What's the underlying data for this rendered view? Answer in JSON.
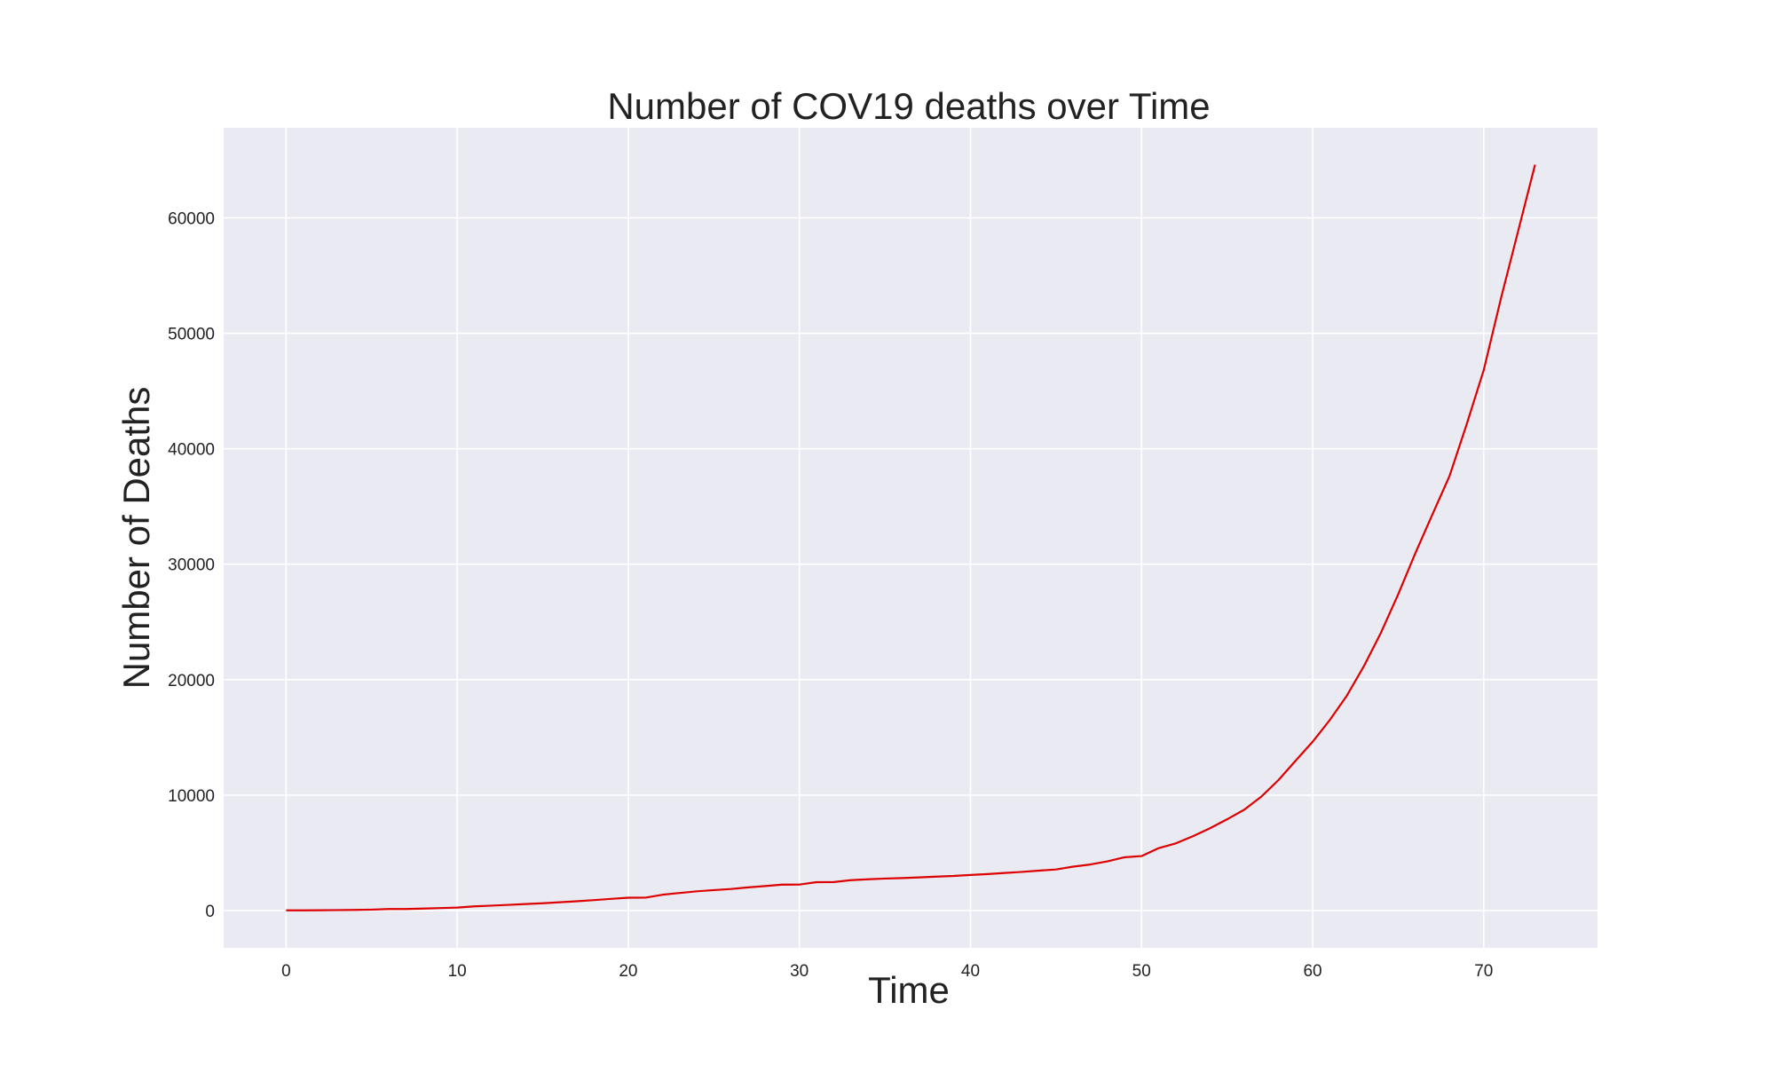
{
  "chart_data": {
    "type": "line",
    "title": "Number of COV19 deaths over Time",
    "xlabel": "Time",
    "ylabel": "Number of Deaths",
    "xlim": [
      -3.65,
      76.65
    ],
    "ylim": [
      -3230,
      67800
    ],
    "xticks": [
      0,
      10,
      20,
      30,
      40,
      50,
      60,
      70
    ],
    "yticks": [
      0,
      10000,
      20000,
      30000,
      40000,
      50000,
      60000
    ],
    "grid": true,
    "background_color": "#eaeaf2",
    "grid_color": "#ffffff",
    "series": [
      {
        "color": "#dd0000",
        "x": [
          0,
          1,
          2,
          3,
          4,
          5,
          6,
          7,
          8,
          9,
          10,
          11,
          12,
          13,
          14,
          15,
          16,
          17,
          18,
          19,
          20,
          21,
          22,
          23,
          24,
          25,
          26,
          27,
          28,
          29,
          30,
          31,
          32,
          33,
          34,
          35,
          36,
          37,
          38,
          39,
          40,
          41,
          42,
          43,
          44,
          45,
          46,
          47,
          48,
          49,
          50,
          51,
          52,
          53,
          54,
          55,
          56,
          57,
          58,
          59,
          60,
          61,
          62,
          63,
          64,
          65,
          66,
          67,
          68,
          69,
          70,
          71,
          72,
          73
        ],
        "y": [
          17,
          18,
          26,
          42,
          56,
          82,
          131,
          133,
          171,
          213,
          259,
          362,
          426,
          492,
          564,
          634,
          719,
          806,
          906,
          1013,
          1113,
          1118,
          1371,
          1523,
          1666,
          1770,
          1868,
          2007,
          2122,
          2247,
          2251,
          2458,
          2469,
          2629,
          2708,
          2770,
          2814,
          2872,
          2941,
          2996,
          3085,
          3160,
          3254,
          3348,
          3460,
          3558,
          3802,
          3988,
          4262,
          4615,
          4720,
          5404,
          5819,
          6440,
          7126,
          7905,
          8733,
          9867,
          11299,
          12973,
          14623,
          16497,
          18615,
          21181,
          24090,
          27386,
          30945,
          34310,
          37638,
          42107,
          46809,
          52982,
          58787,
          64606
        ]
      }
    ]
  }
}
